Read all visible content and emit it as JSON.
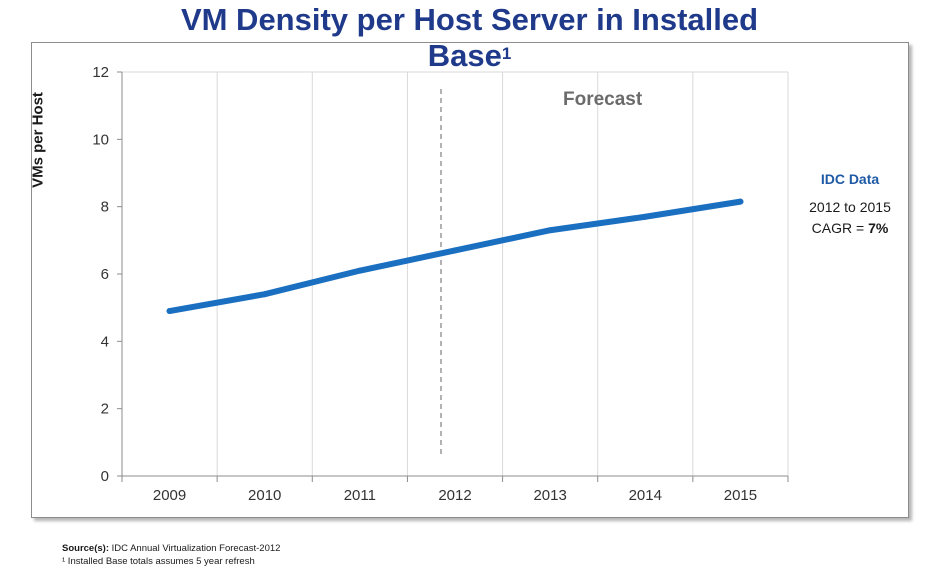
{
  "title": {
    "line1": "VM Density per Host Server in Installed",
    "line2": "Base",
    "sup": "1"
  },
  "forecast_label": "Forecast",
  "idc_box": {
    "heading": "IDC Data",
    "range": "2012 to 2015",
    "cagr_prefix": "CAGR = ",
    "cagr_value": "7%"
  },
  "footnotes": {
    "source_label": "Source(s):",
    "source_text": " IDC Annual Virtualization Forecast-2012",
    "note": "¹ Installed Base totals assumes 5 year refresh"
  },
  "colors": {
    "series": "#1a6fc0",
    "title": "#1f3a8a",
    "grid": "#d9d9d9",
    "divider": "#7f7f7f"
  },
  "chart_data": {
    "type": "line",
    "title": "VM Density per Host Server in Installed Base¹",
    "xlabel": "",
    "ylabel": "VMs per Host",
    "categories": [
      "2009",
      "2010",
      "2011",
      "2012",
      "2013",
      "2014",
      "2015"
    ],
    "series": [
      {
        "values": [
          4.9,
          5.4,
          6.1,
          6.7,
          7.3,
          7.7,
          8.15
        ]
      }
    ],
    "ylim": [
      0,
      12
    ],
    "yticks": [
      0,
      2,
      4,
      6,
      8,
      10,
      12
    ],
    "grid": true,
    "forecast_start": "2012",
    "legend": "none"
  }
}
